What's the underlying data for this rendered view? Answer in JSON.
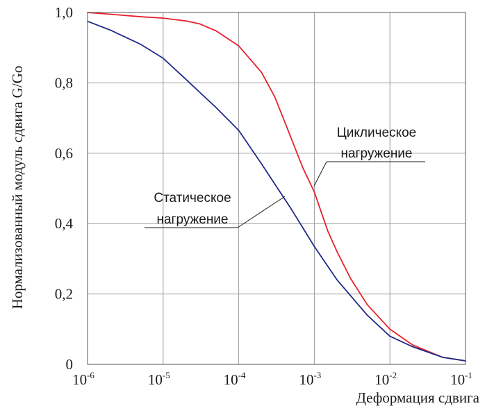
{
  "chart_data": {
    "type": "line",
    "xlabel": "Деформация сдвига",
    "ylabel": "Нормализованный модуль сдвига G/Go",
    "x_scale": "log",
    "xlim": [
      1e-06,
      0.1
    ],
    "ylim": [
      0,
      1.0
    ],
    "grid": true,
    "x_ticks": [
      {
        "base": "10",
        "exp": "-6",
        "value": 1e-06
      },
      {
        "base": "10",
        "exp": "-5",
        "value": 1e-05
      },
      {
        "base": "10",
        "exp": "-4",
        "value": 0.0001
      },
      {
        "base": "10",
        "exp": "-3",
        "value": 0.001
      },
      {
        "base": "10",
        "exp": "-2",
        "value": 0.01
      },
      {
        "base": "10",
        "exp": "-1",
        "value": 0.1
      }
    ],
    "y_ticks": [
      {
        "label": "0",
        "value": 0
      },
      {
        "label": "0,2",
        "value": 0.2
      },
      {
        "label": "0,4",
        "value": 0.4
      },
      {
        "label": "0,6",
        "value": 0.6
      },
      {
        "label": "0,8",
        "value": 0.8
      },
      {
        "label": "1,0",
        "value": 1.0
      }
    ],
    "series": [
      {
        "name": "Циклическое нагружение",
        "color": "#e8202a",
        "points": [
          [
            1e-06,
            1.0
          ],
          [
            2e-06,
            0.995
          ],
          [
            5e-06,
            0.988
          ],
          [
            1e-05,
            0.984
          ],
          [
            2e-05,
            0.976
          ],
          [
            3e-05,
            0.968
          ],
          [
            5e-05,
            0.948
          ],
          [
            0.0001,
            0.905
          ],
          [
            0.0002,
            0.83
          ],
          [
            0.0003,
            0.76
          ],
          [
            0.0005,
            0.64
          ],
          [
            0.0007,
            0.56
          ],
          [
            0.001,
            0.49
          ],
          [
            0.0015,
            0.38
          ],
          [
            0.002,
            0.32
          ],
          [
            0.003,
            0.245
          ],
          [
            0.005,
            0.17
          ],
          [
            0.01,
            0.1
          ],
          [
            0.02,
            0.055
          ],
          [
            0.05,
            0.02
          ],
          [
            0.1,
            0.01
          ]
        ]
      },
      {
        "name": "Статическое нагружение",
        "color": "#1f2a8a",
        "points": [
          [
            1e-06,
            0.975
          ],
          [
            2e-06,
            0.95
          ],
          [
            5e-06,
            0.91
          ],
          [
            1e-05,
            0.87
          ],
          [
            2e-05,
            0.81
          ],
          [
            5e-05,
            0.73
          ],
          [
            0.0001,
            0.665
          ],
          [
            0.0002,
            0.57
          ],
          [
            0.0005,
            0.44
          ],
          [
            0.001,
            0.335
          ],
          [
            0.002,
            0.24
          ],
          [
            0.005,
            0.14
          ],
          [
            0.01,
            0.08
          ],
          [
            0.02,
            0.05
          ],
          [
            0.05,
            0.02
          ],
          [
            0.1,
            0.01
          ]
        ]
      }
    ],
    "annotations": [
      {
        "series": 0,
        "lines": [
          "Циклическое",
          "нагружение"
        ]
      },
      {
        "series": 1,
        "lines": [
          "Статическое",
          "нагружение"
        ]
      }
    ]
  }
}
